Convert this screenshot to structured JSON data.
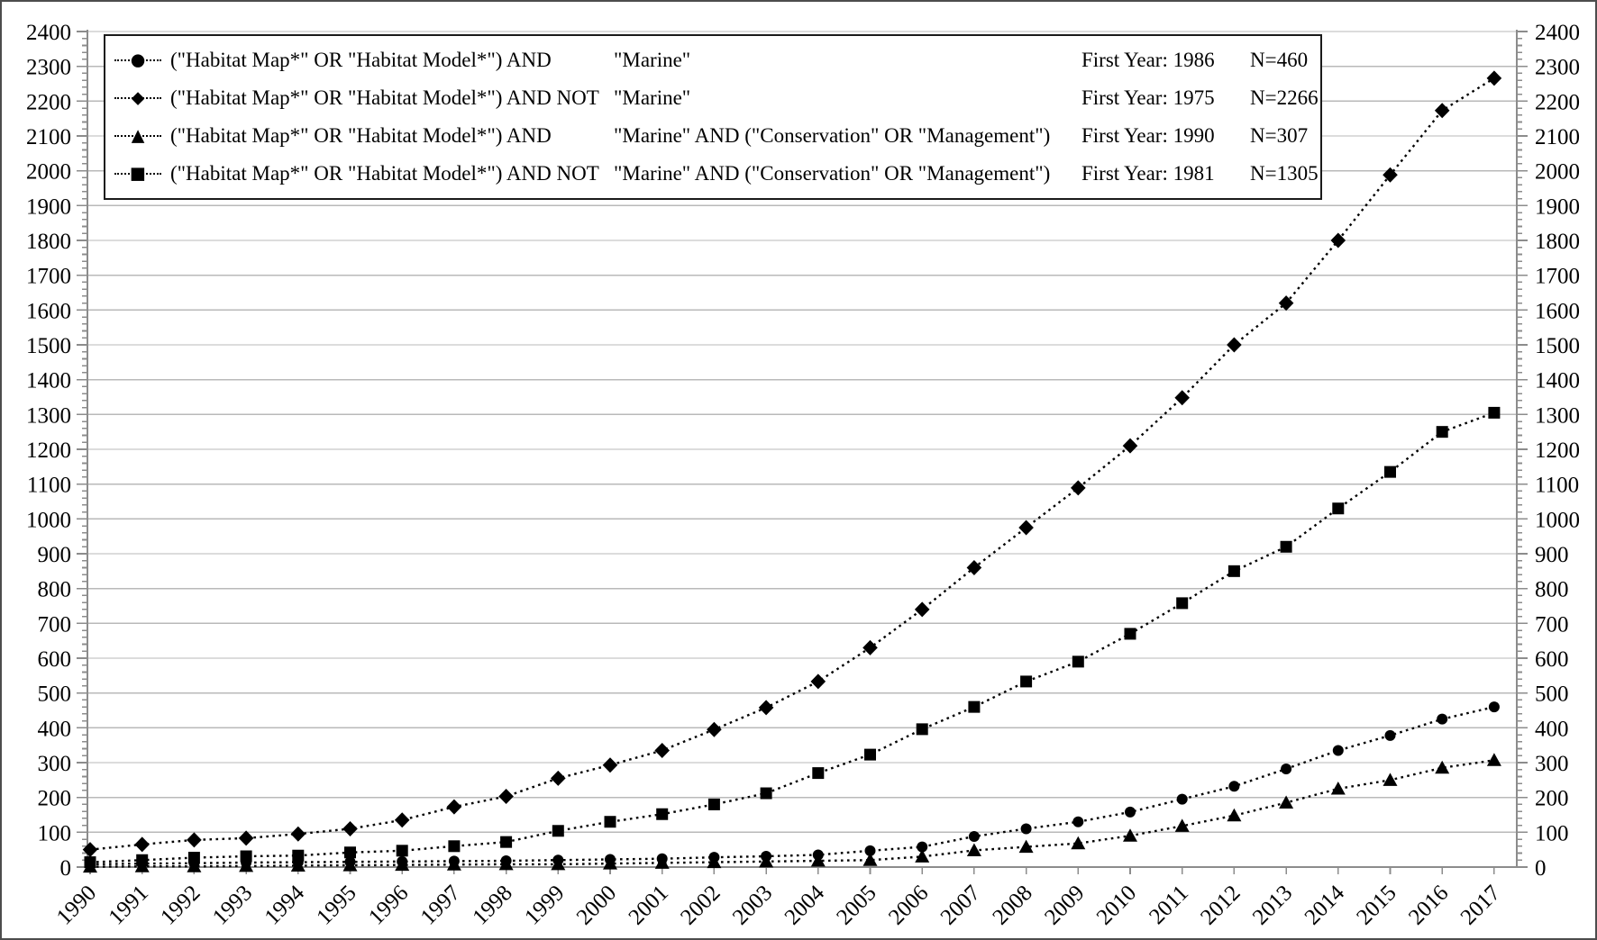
{
  "figure": {
    "background": "#ffffff",
    "border_color": "#4d4d4d",
    "series_color": "#000000",
    "gridline_color": "#b9b9b9",
    "axis_color": "#8c8c8c",
    "tick_label_color": "#000000"
  },
  "legend": {
    "rows": [
      {
        "marker_glyph": "●",
        "marker": "circle",
        "query_prefix": "(\"Habitat Map*\" OR \"Habitat Model*\") AND",
        "query_suffix": "\"Marine\"",
        "first_year": "First Year: 1986",
        "n": "N=460"
      },
      {
        "marker_glyph": "◆",
        "marker": "diamond",
        "query_prefix": "(\"Habitat Map*\" OR \"Habitat Model*\") AND NOT",
        "query_suffix": "\"Marine\"",
        "first_year": "First Year: 1975",
        "n": "N=2266"
      },
      {
        "marker_glyph": "▲",
        "marker": "triangle",
        "query_prefix": "(\"Habitat Map*\" OR \"Habitat Model*\") AND",
        "query_suffix": "\"Marine\" AND (\"Conservation\" OR \"Management\")",
        "first_year": "First Year: 1990",
        "n": "N=307"
      },
      {
        "marker_glyph": "■",
        "marker": "square",
        "query_prefix": "(\"Habitat Map*\" OR \"Habitat Model*\") AND NOT",
        "query_suffix": "\"Marine\" AND (\"Conservation\" OR \"Management\")",
        "first_year": "First Year: 1981",
        "n": "N=1305"
      }
    ]
  },
  "chart_data": {
    "type": "line",
    "title": "",
    "xlabel": "",
    "ylabel": "",
    "grid": true,
    "legend_position": "top-left-inside",
    "ylim": [
      0,
      2400
    ],
    "y_tick_step": 100,
    "y_minor_tick_step": 20,
    "y_axis_sides": [
      "left",
      "right"
    ],
    "line_style": "dotted",
    "x": [
      1990,
      1991,
      1992,
      1993,
      1994,
      1995,
      1996,
      1997,
      1998,
      1999,
      2000,
      2001,
      2002,
      2003,
      2004,
      2005,
      2006,
      2007,
      2008,
      2009,
      2010,
      2011,
      2012,
      2013,
      2014,
      2015,
      2016,
      2017
    ],
    "series": [
      {
        "name": "(\"Habitat Map*\" OR \"Habitat Model*\") AND \"Marine\"",
        "marker": "circle",
        "first_year": 1986,
        "n_total": 460,
        "values": [
          8,
          10,
          11,
          13,
          14,
          15,
          16,
          17,
          18,
          20,
          22,
          24,
          28,
          31,
          35,
          47,
          58,
          88,
          110,
          130,
          158,
          195,
          232,
          282,
          335,
          378,
          425,
          460
        ]
      },
      {
        "name": "(\"Habitat Map*\" OR \"Habitat Model*\") AND NOT \"Marine\"",
        "marker": "diamond",
        "first_year": 1975,
        "n_total": 2266,
        "values": [
          50,
          65,
          78,
          83,
          95,
          110,
          135,
          173,
          203,
          255,
          293,
          335,
          395,
          458,
          533,
          630,
          740,
          860,
          975,
          1089,
          1210,
          1348,
          1500,
          1620,
          1800,
          1988,
          2173,
          2266
        ]
      },
      {
        "name": "(\"Habitat Map*\" OR \"Habitat Model*\") AND \"Marine\" AND (\"Conservation\" OR \"Management\")",
        "marker": "triangle",
        "first_year": 1990,
        "n_total": 307,
        "values": [
          1,
          2,
          2,
          3,
          4,
          5,
          6,
          7,
          8,
          8,
          10,
          12,
          14,
          16,
          18,
          20,
          30,
          48,
          58,
          68,
          90,
          118,
          148,
          185,
          225,
          250,
          285,
          307
        ]
      },
      {
        "name": "(\"Habitat Map*\" OR \"Habitat Model*\") AND NOT \"Marine\" AND (\"Conservation\" OR \"Management\")",
        "marker": "square",
        "first_year": 1981,
        "n_total": 1305,
        "values": [
          14,
          20,
          27,
          31,
          33,
          42,
          47,
          60,
          72,
          104,
          130,
          152,
          180,
          212,
          270,
          323,
          396,
          460,
          533,
          590,
          670,
          758,
          850,
          920,
          1030,
          1135,
          1250,
          1305
        ]
      }
    ]
  }
}
